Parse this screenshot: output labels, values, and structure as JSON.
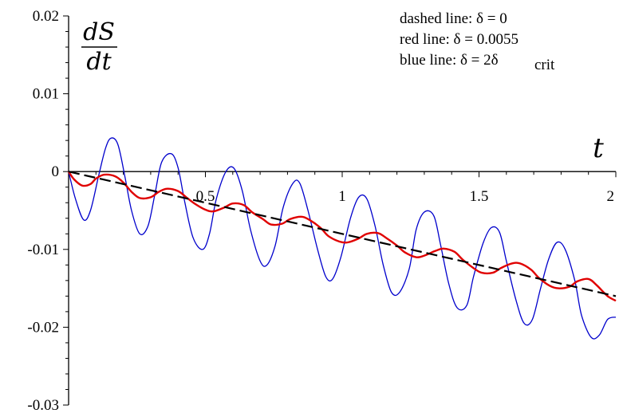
{
  "chart_data": {
    "type": "line",
    "title": "",
    "ylabel_numerator": "dS",
    "ylabel_denominator": "dt",
    "xlabel": "t",
    "xlim": [
      0,
      2
    ],
    "ylim": [
      -0.03,
      0.02
    ],
    "x_ticks": [
      {
        "value": 0.5,
        "label": "0.5"
      },
      {
        "value": 1.0,
        "label": "1"
      },
      {
        "value": 1.5,
        "label": "1.5"
      },
      {
        "value": 2.0,
        "label": "2"
      }
    ],
    "y_ticks": [
      {
        "value": 0.02,
        "label": "0.02"
      },
      {
        "value": 0.01,
        "label": "0.01"
      },
      {
        "value": 0.0,
        "label": "0"
      },
      {
        "value": -0.01,
        "label": "-0.01"
      },
      {
        "value": -0.02,
        "label": "-0.02"
      },
      {
        "value": -0.03,
        "label": "-0.03"
      }
    ],
    "grid": false,
    "legend_placement": "top-right",
    "legend": [
      "dashed line: δ = 0",
      "red line: δ = 0.0055",
      "blue line: δ = 2δ",
      "crit"
    ],
    "series": [
      {
        "color": "#000000",
        "style": "dashed",
        "x": [
          0,
          2
        ],
        "y": [
          0,
          -0.016
        ]
      },
      {
        "color": "#e00000",
        "style": "solid",
        "x": [
          0,
          0.02,
          0.05,
          0.08,
          0.1,
          0.13,
          0.17,
          0.2,
          0.23,
          0.26,
          0.3,
          0.33,
          0.36,
          0.4,
          0.43,
          0.46,
          0.5,
          0.53,
          0.57,
          0.6,
          0.64,
          0.67,
          0.71,
          0.74,
          0.78,
          0.81,
          0.85,
          0.88,
          0.92,
          0.95,
          0.99,
          1.02,
          1.06,
          1.09,
          1.13,
          1.16,
          1.2,
          1.23,
          1.27,
          1.3,
          1.34,
          1.37,
          1.41,
          1.44,
          1.48,
          1.51,
          1.55,
          1.58,
          1.62,
          1.65,
          1.69,
          1.72,
          1.76,
          1.79,
          1.83,
          1.86,
          1.9,
          1.93,
          1.97,
          2.0
        ],
        "y": [
          0,
          -0.001,
          -0.0018,
          -0.0016,
          -0.0009,
          -0.0004,
          -0.0006,
          -0.0014,
          -0.0026,
          -0.0034,
          -0.0033,
          -0.0026,
          -0.0022,
          -0.0025,
          -0.0033,
          -0.0041,
          -0.0049,
          -0.0051,
          -0.0046,
          -0.0041,
          -0.0043,
          -0.0052,
          -0.0061,
          -0.0068,
          -0.0067,
          -0.0061,
          -0.0058,
          -0.0062,
          -0.0072,
          -0.0083,
          -0.009,
          -0.0091,
          -0.0086,
          -0.008,
          -0.0079,
          -0.0085,
          -0.0095,
          -0.0104,
          -0.011,
          -0.0108,
          -0.0102,
          -0.0099,
          -0.0103,
          -0.0113,
          -0.0124,
          -0.013,
          -0.013,
          -0.0124,
          -0.0118,
          -0.0118,
          -0.0126,
          -0.0137,
          -0.0147,
          -0.015,
          -0.0148,
          -0.0141,
          -0.0138,
          -0.0146,
          -0.016,
          -0.0166
        ]
      },
      {
        "color": "#0000cc",
        "style": "solid",
        "x": [
          0,
          0.025,
          0.055,
          0.08,
          0.11,
          0.135,
          0.155,
          0.18,
          0.205,
          0.23,
          0.26,
          0.29,
          0.315,
          0.34,
          0.375,
          0.4,
          0.425,
          0.455,
          0.49,
          0.515,
          0.54,
          0.575,
          0.605,
          0.635,
          0.665,
          0.7,
          0.725,
          0.755,
          0.785,
          0.82,
          0.845,
          0.875,
          0.91,
          0.94,
          0.965,
          0.995,
          1.03,
          1.06,
          1.09,
          1.12,
          1.15,
          1.18,
          1.21,
          1.245,
          1.27,
          1.3,
          1.335,
          1.36,
          1.39,
          1.42,
          1.455,
          1.48,
          1.515,
          1.545,
          1.575,
          1.6,
          1.635,
          1.665,
          1.695,
          1.725,
          1.755,
          1.785,
          1.815,
          1.85,
          1.875,
          1.91,
          1.94,
          1.97,
          2.0
        ],
        "y": [
          0,
          -0.0035,
          -0.0062,
          -0.005,
          -0.0005,
          0.003,
          0.0043,
          0.0035,
          -0.0005,
          -0.005,
          -0.008,
          -0.007,
          -0.003,
          0.0012,
          0.0023,
          0.0005,
          -0.004,
          -0.0085,
          -0.01,
          -0.008,
          -0.0035,
          0.0,
          0.0004,
          -0.0025,
          -0.0075,
          -0.0115,
          -0.012,
          -0.0095,
          -0.0045,
          -0.0015,
          -0.0015,
          -0.005,
          -0.01,
          -0.0135,
          -0.0138,
          -0.011,
          -0.006,
          -0.0033,
          -0.0035,
          -0.007,
          -0.012,
          -0.0155,
          -0.0155,
          -0.0125,
          -0.0075,
          -0.0052,
          -0.0057,
          -0.0095,
          -0.0145,
          -0.0175,
          -0.0172,
          -0.0135,
          -0.0092,
          -0.0072,
          -0.0078,
          -0.0115,
          -0.0165,
          -0.0195,
          -0.019,
          -0.015,
          -0.0112,
          -0.0091,
          -0.01,
          -0.014,
          -0.0185,
          -0.0213,
          -0.021,
          -0.019,
          -0.0187
        ]
      }
    ]
  }
}
